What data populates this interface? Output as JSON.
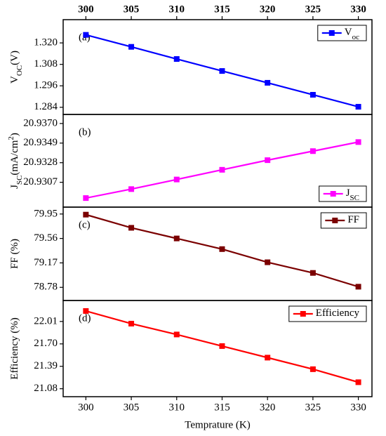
{
  "chart_data": [
    {
      "type": "line",
      "annotation": "(a)",
      "ylabel": [
        "V",
        {
          "sub": "OC"
        },
        "(V)"
      ],
      "x": [
        300,
        305,
        310,
        315,
        320,
        325,
        330
      ],
      "xlim": [
        297.5,
        331.5
      ],
      "xticks": [
        300,
        305,
        310,
        315,
        320,
        325,
        330
      ],
      "ylim": [
        1.28,
        1.333
      ],
      "yticks": [
        1.284,
        1.296,
        1.308,
        {
          "value": 1.32,
          "label": "1.320"
        }
      ],
      "legend": "top-right",
      "series": [
        {
          "name": [
            "V",
            {
              "sub": "oc"
            }
          ],
          "color": "#0000ff",
          "values": [
            1.3245,
            1.3178,
            1.311,
            1.3043,
            1.2977,
            1.291,
            1.2843
          ]
        }
      ]
    },
    {
      "type": "line",
      "annotation": "(b)",
      "ylabel": [
        "J",
        {
          "sub": "SC"
        },
        "(mA/cm",
        {
          "sup": "2"
        },
        ")"
      ],
      "x": [
        300,
        305,
        310,
        315,
        320,
        325,
        330
      ],
      "xlim": [
        297.5,
        331.5
      ],
      "xticks": [
        300,
        305,
        310,
        315,
        320,
        325,
        330
      ],
      "ylim": [
        20.92804,
        20.93797
      ],
      "yticks": [
        20.9307,
        20.9328,
        20.9349,
        {
          "value": 20.937,
          "label": "20.9370"
        }
      ],
      "legend": "bottom-right",
      "series": [
        {
          "name": [
            "J",
            {
              "sub": "SC"
            }
          ],
          "color": "#ff00ff",
          "values": [
            20.92901,
            20.92997,
            20.931,
            20.93204,
            20.93307,
            20.93404,
            20.93501
          ]
        }
      ]
    },
    {
      "type": "line",
      "annotation": "(c)",
      "ylabel": [
        "FF (%)"
      ],
      "x": [
        300,
        305,
        310,
        315,
        320,
        325,
        330
      ],
      "xlim": [
        297.5,
        331.5
      ],
      "xticks": [
        300,
        305,
        310,
        315,
        320,
        325,
        330
      ],
      "ylim": [
        78.57,
        80.06
      ],
      "yticks": [
        78.78,
        79.17,
        79.56,
        79.95
      ],
      "legend": "top-right",
      "series": [
        {
          "name": [
            "FF"
          ],
          "color": "#7b0000",
          "values": [
            79.94,
            79.73,
            79.56,
            79.39,
            79.18,
            79.01,
            78.79
          ]
        }
      ]
    },
    {
      "type": "line",
      "annotation": "(d)",
      "ylabel": [
        "Efficiency (%)"
      ],
      "xlabel": "Temprature (K)",
      "x": [
        300,
        305,
        310,
        315,
        320,
        325,
        330
      ],
      "xlim": [
        297.5,
        331.5
      ],
      "xticks": [
        300,
        305,
        310,
        315,
        320,
        325,
        330
      ],
      "ylim": [
        20.97,
        22.3
      ],
      "yticks": [
        21.08,
        21.39,
        {
          "value": 21.7,
          "label": "21.70"
        },
        22.01
      ],
      "legend": "top-right",
      "series": [
        {
          "name": [
            "Efficiency"
          ],
          "color": "#ff0000",
          "values": [
            22.155,
            21.98,
            21.83,
            21.67,
            21.51,
            21.35,
            21.17
          ]
        }
      ]
    }
  ]
}
